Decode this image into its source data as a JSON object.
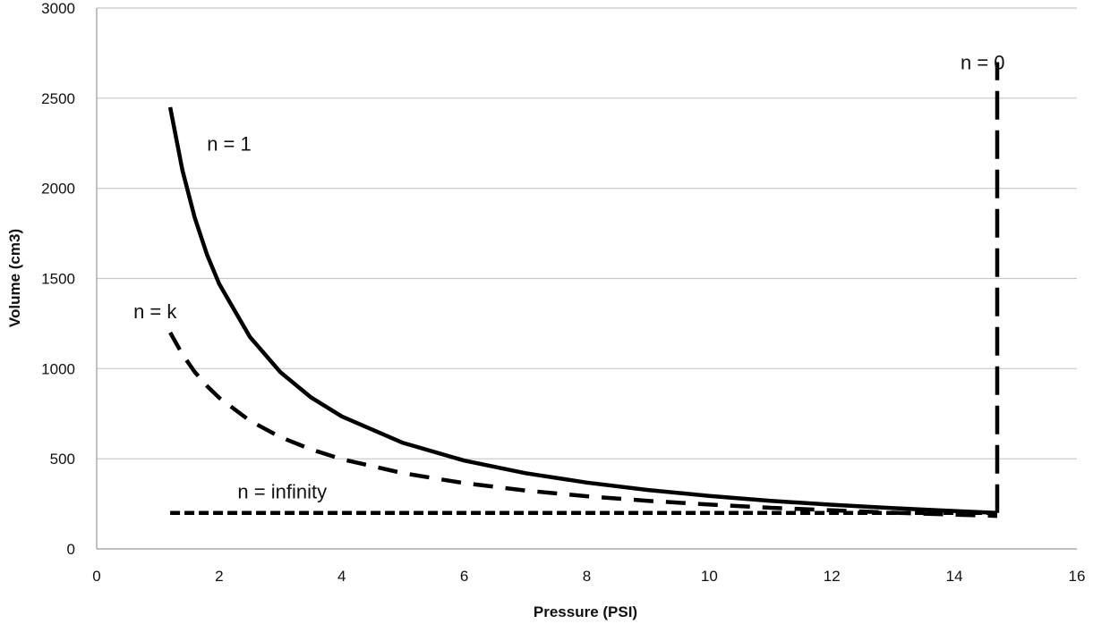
{
  "chart_data": {
    "type": "line",
    "title": "",
    "xlabel": "Pressure (PSI)",
    "ylabel": "Volume (cm3)",
    "xlim": [
      0,
      16
    ],
    "ylim": [
      0,
      3000
    ],
    "x_ticks": [
      "0",
      "2",
      "4",
      "6",
      "8",
      "10",
      "12",
      "14",
      "16"
    ],
    "y_ticks": [
      "0",
      "500",
      "1000",
      "1500",
      "2000",
      "2500",
      "3000"
    ],
    "grid": "horizontal",
    "legend": "none",
    "series": [
      {
        "name": "n = 1",
        "style": "solid",
        "x": [
          1.2,
          1.4,
          1.6,
          1.8,
          2.0,
          2.5,
          3.0,
          3.5,
          4.0,
          5.0,
          6.0,
          7.0,
          8.0,
          9.0,
          10.0,
          11.0,
          12.0,
          13.0,
          14.0,
          14.7
        ],
        "y": [
          2450,
          2100,
          1838,
          1633,
          1470,
          1176,
          980,
          840,
          735,
          588,
          490,
          420,
          368,
          327,
          294,
          267,
          245,
          226,
          210,
          200
        ]
      },
      {
        "name": "n = k",
        "style": "dashed",
        "x": [
          1.2,
          1.4,
          1.6,
          1.8,
          2.0,
          2.5,
          3.0,
          3.5,
          4.0,
          5.0,
          6.0,
          7.0,
          8.0,
          9.0,
          10.0,
          11.0,
          12.0,
          13.0,
          14.0,
          14.7
        ],
        "y": [
          1200,
          1079,
          982,
          904,
          838,
          711,
          620,
          552,
          498,
          420,
          365,
          324,
          292,
          267,
          246,
          228,
          214,
          201,
          190,
          183
        ]
      },
      {
        "name": "n = infinity",
        "style": "short-dashed",
        "x": [
          1.2,
          14.7
        ],
        "y": [
          200,
          200
        ]
      },
      {
        "name": "n = 0",
        "style": "long-dashed",
        "x": [
          14.7,
          14.7
        ],
        "y": [
          200,
          2700
        ]
      }
    ],
    "annotations": [
      {
        "text": "n = 0",
        "x": 14.1,
        "y": 2700
      },
      {
        "text": "n = 1",
        "x": 1.8,
        "y": 2250
      },
      {
        "text": "n = k",
        "x": 0.6,
        "y": 1320
      },
      {
        "text": "n = infinity",
        "x": 2.3,
        "y": 320
      }
    ]
  }
}
